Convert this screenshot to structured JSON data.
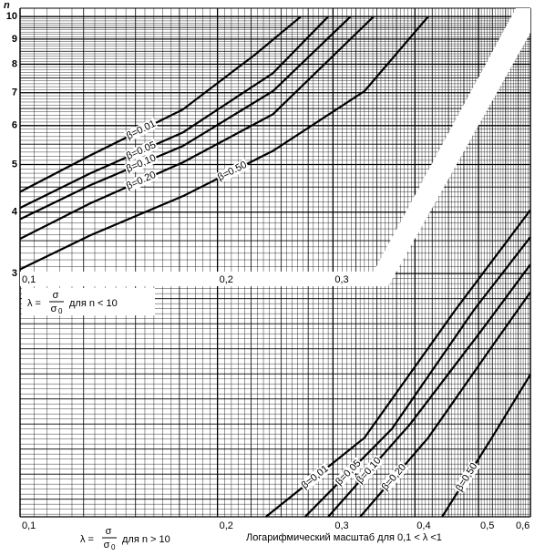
{
  "chart_data": {
    "type": "line",
    "y_label": "n",
    "log_x": true,
    "log_y": true,
    "grid": true,
    "xlim": [
      0.1,
      0.6
    ],
    "ylim": [
      0.96,
      10.4
    ],
    "yticks": [
      3,
      4,
      5,
      6,
      7,
      8,
      9,
      10
    ],
    "xticks_upper": [
      {
        "value": 0.1,
        "label": "0,1"
      },
      {
        "value": 0.2,
        "label": "0,2"
      },
      {
        "value": 0.3,
        "label": "0,3"
      }
    ],
    "xticks": [
      {
        "value": 0.1,
        "label": "0,1"
      },
      {
        "value": 0.2,
        "label": "0,2"
      },
      {
        "value": 0.3,
        "label": "0,3"
      },
      {
        "value": 0.4,
        "label": "0,4"
      },
      {
        "value": 0.5,
        "label": "0,5"
      },
      {
        "value": 0.6,
        "label": "0,6"
      }
    ],
    "annotations": {
      "upper_formula": {
        "lhs": "λ =",
        "num": "σ",
        "den": "σ",
        "den_sub": "0",
        "condition": "для n < 10"
      },
      "lower_formula": {
        "lhs": "λ =",
        "num": "σ",
        "den": "σ",
        "den_sub": "0",
        "condition": "для n > 10"
      },
      "scale_note": "Логарифмический масштаб для 0,1 < λ <1"
    },
    "series": [
      {
        "name": "β=0.01",
        "color": "#000000",
        "x": [
          0.1,
          0.128,
          0.177,
          0.228,
          0.268
        ],
        "values": [
          4.4,
          5.22,
          6.47,
          8.36,
          10
        ]
      },
      {
        "name": "β=0.05",
        "color": "#000000",
        "x": [
          0.1,
          0.128,
          0.177,
          0.243,
          0.295
        ],
        "values": [
          4.08,
          4.8,
          5.81,
          7.67,
          10
        ]
      },
      {
        "name": "β=0,10",
        "color": "#000000",
        "x": [
          0.1,
          0.128,
          0.177,
          0.243,
          0.319
        ],
        "values": [
          3.87,
          4.54,
          5.45,
          7.05,
          10
        ]
      },
      {
        "name": "β=0.20",
        "color": "#000000",
        "x": [
          0.1,
          0.128,
          0.177,
          0.243,
          0.346
        ],
        "values": [
          3.53,
          4.17,
          5.05,
          6.33,
          10
        ]
      },
      {
        "name": "β=0.50",
        "color": "#000000",
        "x": [
          0.1,
          0.128,
          0.177,
          0.243,
          0.335,
          0.419
        ],
        "values": [
          3.06,
          3.59,
          4.31,
          5.33,
          7.05,
          10
        ]
      },
      {
        "name": "β=0,01",
        "color": "#000000",
        "x": [
          0.237,
          0.335,
          0.461,
          0.6
        ],
        "values": [
          0.96,
          1.39,
          2.53,
          4.04
        ]
      },
      {
        "name": "β=0,05",
        "color": "#000000",
        "x": [
          0.272,
          0.369,
          0.492,
          0.6
        ],
        "values": [
          0.96,
          1.45,
          2.53,
          3.56
        ]
      },
      {
        "name": "β=0,10",
        "color": "#000000",
        "x": [
          0.295,
          0.393,
          0.508,
          0.6
        ],
        "values": [
          0.96,
          1.48,
          2.32,
          3.13
        ]
      },
      {
        "name": "β=0,20",
        "color": "#000000",
        "x": [
          0.33,
          0.419,
          0.524,
          0.6
        ],
        "values": [
          0.96,
          1.39,
          2.13,
          2.75
        ]
      },
      {
        "name": "β=0,50",
        "color": "#000000",
        "x": [
          0.44,
          0.524,
          0.6
        ],
        "values": [
          0.96,
          1.39,
          1.87
        ]
      }
    ]
  }
}
